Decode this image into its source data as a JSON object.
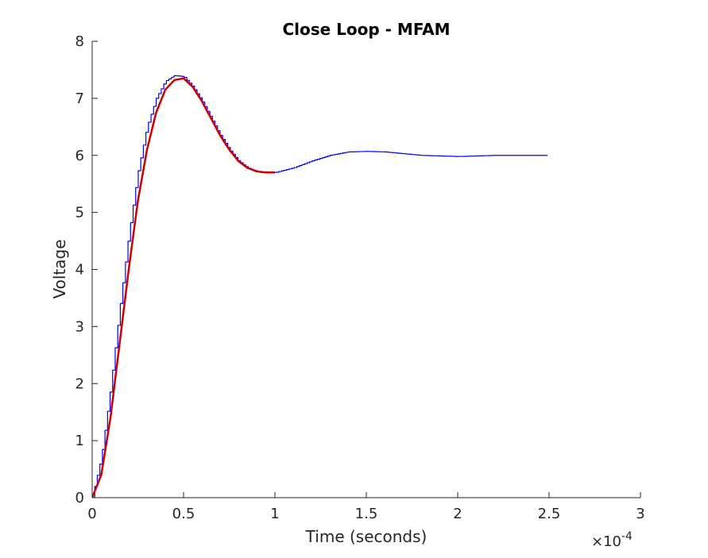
{
  "chart_data": {
    "type": "line",
    "title": "Close Loop - MFAM",
    "xlabel": "Time (seconds)",
    "ylabel": "Voltage",
    "x_exponent_prefix": "×10",
    "x_exponent_power": "-4",
    "xlim": [
      0,
      3
    ],
    "ylim": [
      0,
      8
    ],
    "xticks": [
      0,
      0.5,
      1,
      1.5,
      2,
      2.5,
      3
    ],
    "xtick_labels": [
      "0",
      "0.5",
      "1",
      "1.5",
      "2",
      "2.5",
      "3"
    ],
    "yticks": [
      0,
      1,
      2,
      3,
      4,
      5,
      6,
      7,
      8
    ],
    "ytick_labels": [
      "0",
      "1",
      "2",
      "3",
      "4",
      "5",
      "6",
      "7",
      "8"
    ],
    "grid": false,
    "series": [
      {
        "color": "#0000ff",
        "style": "staircase",
        "x": [
          0,
          0.05,
          0.1,
          0.15,
          0.2,
          0.25,
          0.3,
          0.35,
          0.4,
          0.45,
          0.5,
          0.55,
          0.6,
          0.65,
          0.7,
          0.75,
          0.8,
          0.85,
          0.9,
          0.95,
          1.0,
          1.1,
          1.2,
          1.3,
          1.4,
          1.5,
          1.6,
          1.7,
          1.8,
          1.9,
          2.0,
          2.1,
          2.2,
          2.3,
          2.4,
          2.5
        ],
        "y": [
          0,
          0.7,
          1.9,
          3.3,
          4.6,
          5.7,
          6.5,
          7.0,
          7.3,
          7.4,
          7.38,
          7.2,
          6.95,
          6.65,
          6.35,
          6.1,
          5.9,
          5.78,
          5.72,
          5.7,
          5.7,
          5.78,
          5.9,
          6.0,
          6.06,
          6.07,
          6.06,
          6.03,
          6.0,
          5.99,
          5.98,
          5.99,
          6.0,
          6.0,
          6.0,
          6.0
        ]
      },
      {
        "color": "#cc0000",
        "style": "line",
        "x": [
          0,
          0.05,
          0.1,
          0.15,
          0.2,
          0.25,
          0.3,
          0.35,
          0.4,
          0.45,
          0.5,
          0.55,
          0.6,
          0.65,
          0.7,
          0.75,
          0.8,
          0.85,
          0.9,
          0.95,
          1.0
        ],
        "y": [
          0,
          0.4,
          1.4,
          2.7,
          4.0,
          5.2,
          6.1,
          6.75,
          7.15,
          7.32,
          7.35,
          7.2,
          6.95,
          6.65,
          6.35,
          6.1,
          5.9,
          5.78,
          5.72,
          5.7,
          5.7
        ]
      }
    ]
  }
}
